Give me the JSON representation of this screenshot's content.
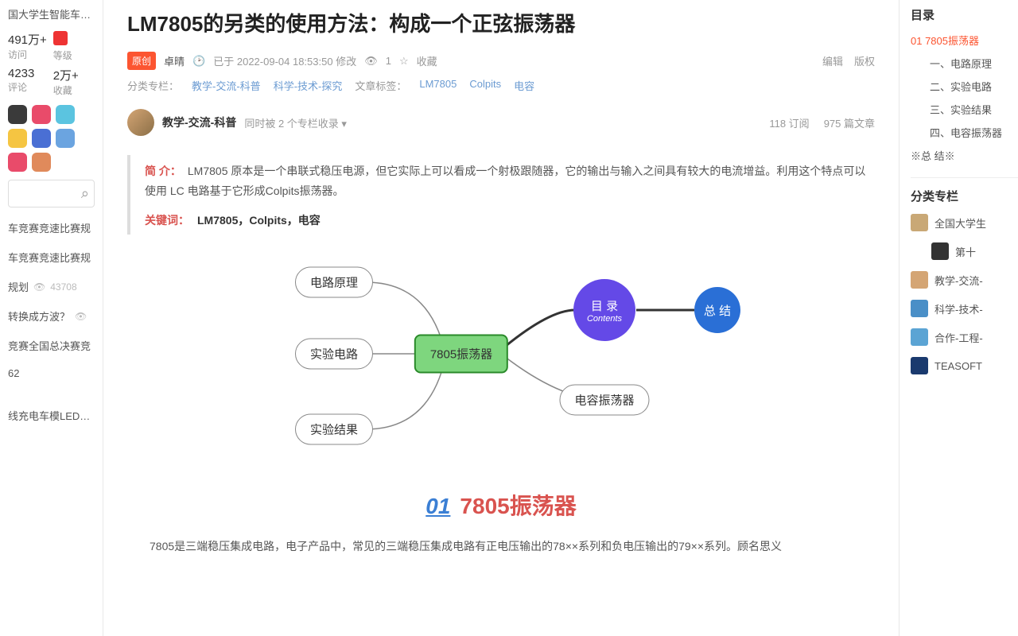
{
  "left": {
    "topTitle": "国大学生智能车…",
    "stats": [
      {
        "num": "491万+",
        "lbl": "访问"
      },
      {
        "num_icon": true,
        "lbl": "等级"
      },
      {
        "num": "4233",
        "lbl": "评论"
      },
      {
        "num": "2万+",
        "lbl": "收藏"
      }
    ],
    "badgeColors": [
      "#3a3a3a",
      "#e94b6a",
      "#5bc4e0",
      "#f5c542",
      "#4a6fd4",
      "#6ba4e0",
      "#e94b6a",
      "#e08a5b"
    ],
    "items": [
      {
        "text": "车竞赛竞速比赛规"
      },
      {
        "text": "车竞赛竞速比赛规"
      },
      {
        "text": "规划",
        "eye": true,
        "views": "43708"
      },
      {
        "text": "转换成方波？",
        "eye": true
      },
      {
        "text": "竞赛全国总决赛竞"
      },
      {
        "text": "62"
      },
      {
        "text": ""
      },
      {
        "text": "线充电车模LED…"
      }
    ]
  },
  "article": {
    "title": "LM7805的另类的使用方法：构成一个正弦振荡器",
    "origBadge": "原创",
    "author": "卓晴",
    "pubPrefix": "已于",
    "pubTime": "2022-09-04 18:53:50",
    "pubSuffix": "修改",
    "viewIcon": "👁",
    "viewCount": "1",
    "favLabel": "收藏",
    "editLabel": "编辑",
    "copyLabel": "版权",
    "catLabel": "分类专栏：",
    "cats": [
      "教学-交流-科普",
      "科学-技术-探究"
    ],
    "tagLabel": "文章标签：",
    "tags": [
      "LM7805",
      "Colpits",
      "电容"
    ],
    "columnName": "教学-交流-科普",
    "columnSub": "同时被 2 个专栏收录 ▾",
    "subscribe": "118 订阅",
    "articleCount": "975 篇文章",
    "introLabel": "简 介：",
    "introText": "LM7805 原本是一个串联式稳压电源，但它实际上可以看成一个射极跟随器，它的输出与输入之间具有较大的电流增益。利用这个特点可以使用 LC 电路基于它形成Colpits振荡器。",
    "kwLabel": "关键词：",
    "kwText": "LM7805，Colpits，电容",
    "mindmap": {
      "leaves": [
        "电路原理",
        "实验电路",
        "实验结果",
        "电容振荡器"
      ],
      "center": "7805振荡器",
      "tocMain": "目 录",
      "tocSub": "Contents",
      "summary": "总 结"
    },
    "secNum": "01",
    "secTitle": "7805振荡器",
    "bodyText": "7805是三端稳压集成电路，电子产品中，常见的三端稳压集成电路有正电压输出的78××系列和负电压输出的79××系列。顾名思义"
  },
  "right": {
    "tocTitle": "目录",
    "tocL1": "01 7805振荡器",
    "tocL2": [
      "一、电路原理",
      "二、实验电路",
      "三、实验结果",
      "四、电容振荡器"
    ],
    "tocSummary": "※总 结※",
    "colTitle": "分类专栏",
    "cols": [
      {
        "txt": "全国大学生",
        "color": "#c9a876"
      },
      {
        "txt": "第十",
        "color": "#333",
        "indent": true
      },
      {
        "txt": "教学-交流-",
        "color": "#d4a574"
      },
      {
        "txt": "科学-技术-",
        "color": "#4a8fc7"
      },
      {
        "txt": "合作-工程-",
        "color": "#5ba4d4"
      },
      {
        "txt": "TEASOFT",
        "color": "#1a3a6e"
      }
    ]
  }
}
